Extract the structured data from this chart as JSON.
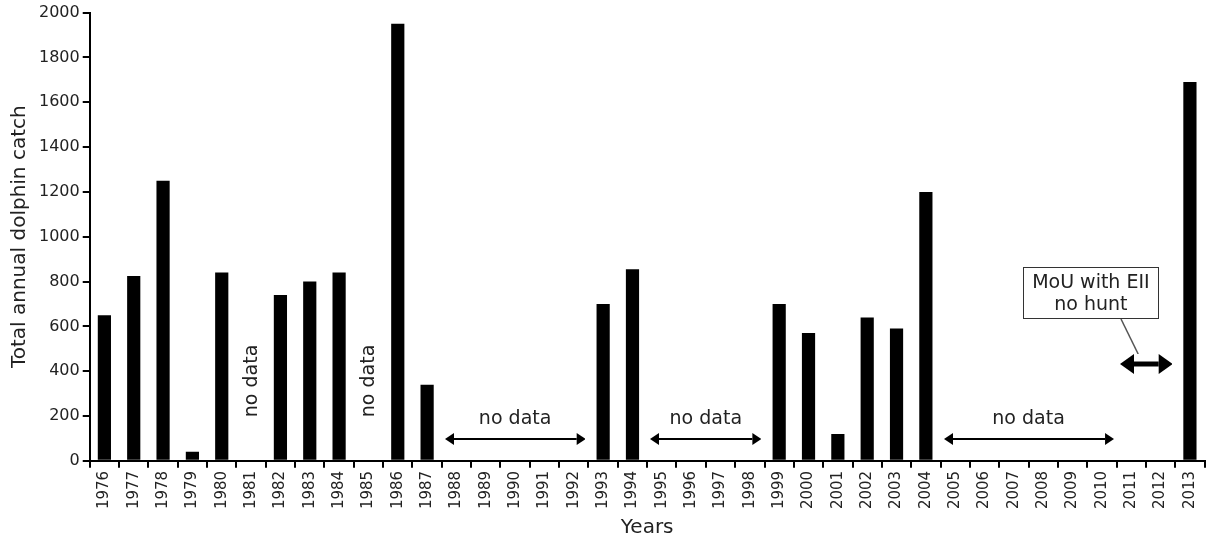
{
  "chart_data": {
    "type": "bar",
    "xlabel": "Years",
    "ylabel": "Total annual dolphin catch",
    "categories": [
      "1976",
      "1977",
      "1978",
      "1979",
      "1980",
      "1981",
      "1982",
      "1983",
      "1984",
      "1985",
      "1986",
      "1987",
      "1988",
      "1989",
      "1990",
      "1991",
      "1992",
      "1993",
      "1994",
      "1995",
      "1996",
      "1997",
      "1998",
      "1999",
      "2000",
      "2001",
      "2002",
      "2003",
      "2004",
      "2005",
      "2006",
      "2007",
      "2008",
      "2009",
      "2010",
      "2011",
      "2012",
      "2013"
    ],
    "values": [
      650,
      825,
      1250,
      40,
      840,
      null,
      740,
      800,
      840,
      null,
      1950,
      340,
      null,
      null,
      null,
      null,
      null,
      700,
      855,
      null,
      null,
      null,
      null,
      700,
      570,
      120,
      640,
      590,
      1200,
      null,
      null,
      null,
      null,
      null,
      null,
      0,
      0,
      1690
    ],
    "color": "#000000",
    "ylim": [
      0,
      2000
    ],
    "yticks": [
      0,
      200,
      400,
      600,
      800,
      1000,
      1200,
      1400,
      1600,
      1800,
      2000
    ],
    "annotations": [
      "no data",
      "no data",
      "no data",
      "no data",
      "no data",
      "MoU with EII\nno hunt"
    ]
  }
}
